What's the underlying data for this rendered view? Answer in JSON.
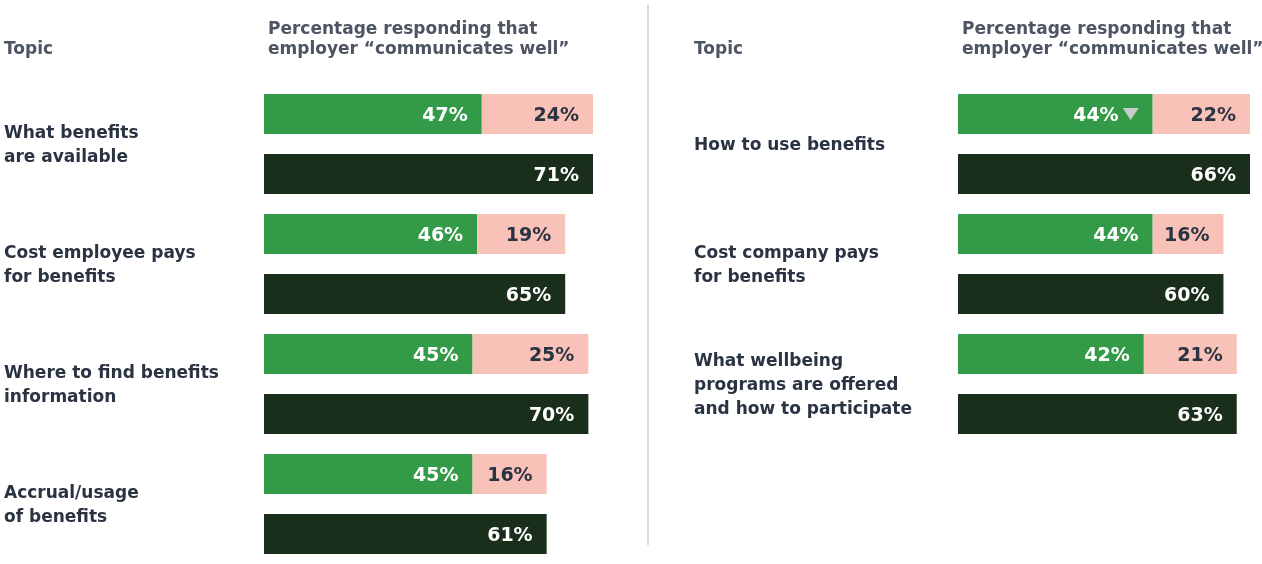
{
  "chart_data": [
    {
      "type": "bar",
      "orientation": "horizontal",
      "stacked": true,
      "ylabel": "Topic",
      "xlabel": "Percentage responding that employer “communicates well”",
      "categories": [
        "What benefits\nare available",
        null,
        "Cost employee pays\nfor benefits",
        null,
        "Where to find benefits\ninformation",
        null,
        "Accrual/usage\nof benefits",
        null
      ],
      "series": [
        {
          "color": "#339a48",
          "values": [
            47,
            null,
            46,
            null,
            45,
            null,
            45,
            null
          ],
          "value_labels": [
            "47%",
            null,
            "46%",
            null,
            "45%",
            null,
            "45%",
            null
          ]
        },
        {
          "color": "#f9c2b8",
          "values": [
            24,
            null,
            19,
            null,
            25,
            null,
            16,
            null
          ],
          "value_labels": [
            "24%",
            null,
            "19%",
            null,
            "25%",
            null,
            "16%",
            null
          ]
        },
        {
          "color": "#1a2e1c",
          "values": [
            null,
            71,
            null,
            65,
            null,
            70,
            null,
            61
          ],
          "value_labels": [
            null,
            "71%",
            null,
            "65%",
            null,
            "70%",
            null,
            "61%"
          ]
        }
      ]
    },
    {
      "type": "bar",
      "orientation": "horizontal",
      "stacked": true,
      "ylabel": "Topic",
      "xlabel": "Percentage responding that employer “communicates well”",
      "categories": [
        "How to use benefits",
        null,
        "Cost company pays\nfor benefits",
        null,
        "What wellbeing\nprograms are offered\nand how to participate",
        null
      ],
      "series": [
        {
          "color": "#339a48",
          "values": [
            44,
            null,
            44,
            null,
            42,
            null
          ],
          "value_labels": [
            "44%",
            null,
            "44%",
            null,
            "42%",
            null
          ]
        },
        {
          "color": "#f9c2b8",
          "values": [
            22,
            null,
            16,
            null,
            21,
            null
          ],
          "value_labels": [
            "22%",
            null,
            "16%",
            null,
            "21%",
            null
          ]
        },
        {
          "color": "#1a2e1c",
          "values": [
            null,
            66,
            null,
            60,
            null,
            63
          ],
          "value_labels": [
            null,
            "66%",
            null,
            "60%",
            null,
            "63%"
          ]
        }
      ]
    }
  ]
}
